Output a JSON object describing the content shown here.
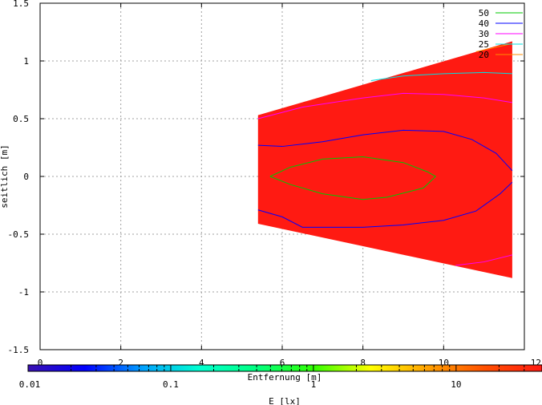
{
  "chart_data": {
    "type": "contour",
    "title": "",
    "xlabel": "Entfernung [m]",
    "ylabel": "seitlich [m]",
    "xlim": [
      0,
      12
    ],
    "ylim": [
      -1.5,
      1.5
    ],
    "x_ticks": [
      0,
      2,
      4,
      6,
      8,
      10,
      12
    ],
    "x_tick_labels": [
      "0",
      "2",
      "4",
      "6",
      "8",
      "10",
      "12"
    ],
    "y_ticks": [
      1.5,
      1,
      0.5,
      0,
      -0.5,
      -1,
      -1.5
    ],
    "y_tick_labels": [
      "1.5",
      "1",
      "0.5",
      "0",
      "-0.5",
      "-1",
      "-1.5"
    ],
    "grid": true,
    "legend_position": "top-right",
    "fill_color": "#ff1a12",
    "region": [
      [
        5.4,
        0.53
      ],
      [
        11.7,
        1.17
      ],
      [
        11.7,
        -0.88
      ],
      [
        5.4,
        -0.41
      ]
    ],
    "contours": [
      {
        "name": "50",
        "color": "#00c800",
        "points": [
          [
            5.7,
            0.0
          ],
          [
            6.2,
            0.08
          ],
          [
            7.0,
            0.15
          ],
          [
            8.0,
            0.17
          ],
          [
            9.0,
            0.12
          ],
          [
            9.6,
            0.04
          ],
          [
            9.8,
            0.0
          ],
          [
            9.5,
            -0.1
          ],
          [
            8.6,
            -0.18
          ],
          [
            8.0,
            -0.2
          ],
          [
            7.0,
            -0.15
          ],
          [
            6.2,
            -0.07
          ],
          [
            5.7,
            0.0
          ]
        ]
      },
      {
        "name": "40",
        "color": "#0000ff",
        "points": [
          [
            5.4,
            0.27
          ],
          [
            6.0,
            0.26
          ],
          [
            7.0,
            0.3
          ],
          [
            8.0,
            0.36
          ],
          [
            9.0,
            0.4
          ],
          [
            10.0,
            0.39
          ],
          [
            10.7,
            0.32
          ],
          [
            11.3,
            0.2
          ],
          [
            11.7,
            0.05
          ]
        ]
      },
      {
        "name": "40",
        "color": "#0000ff",
        "points": [
          [
            5.4,
            -0.29
          ],
          [
            6.0,
            -0.35
          ],
          [
            6.5,
            -0.44
          ],
          [
            8.0,
            -0.44
          ],
          [
            9.0,
            -0.42
          ],
          [
            10.0,
            -0.38
          ],
          [
            10.8,
            -0.3
          ],
          [
            11.4,
            -0.15
          ],
          [
            11.7,
            -0.05
          ]
        ]
      },
      {
        "name": "30",
        "color": "#ff00ff",
        "points": [
          [
            5.4,
            0.5
          ],
          [
            6.5,
            0.6
          ],
          [
            8.0,
            0.68
          ],
          [
            9.0,
            0.72
          ],
          [
            10.0,
            0.71
          ],
          [
            11.0,
            0.68
          ],
          [
            11.7,
            0.64
          ]
        ]
      },
      {
        "name": "30",
        "color": "#ff00ff",
        "points": [
          [
            10.3,
            -0.77
          ],
          [
            11.0,
            -0.74
          ],
          [
            11.7,
            -0.68
          ]
        ]
      },
      {
        "name": "25",
        "color": "#00e0e0",
        "points": [
          [
            8.2,
            0.83
          ],
          [
            9.0,
            0.87
          ],
          [
            10.0,
            0.89
          ],
          [
            11.0,
            0.9
          ],
          [
            11.7,
            0.89
          ]
        ]
      },
      {
        "name": "20",
        "color": "#ff8c00",
        "points": [
          [
            10.8,
            1.08
          ],
          [
            11.3,
            1.12
          ],
          [
            11.7,
            1.15
          ]
        ]
      }
    ],
    "legend": [
      {
        "label": "50",
        "color": "#00c800"
      },
      {
        "label": "40",
        "color": "#0000ff"
      },
      {
        "label": "30",
        "color": "#ff00ff"
      },
      {
        "label": "25",
        "color": "#00e0e0"
      },
      {
        "label": "20",
        "color": "#ff8c00"
      }
    ],
    "colorbar": {
      "label": "E [lx]",
      "scale": "log",
      "range": [
        0.01,
        40
      ],
      "tick_labels": [
        "0.01",
        "0.1",
        "1",
        "10"
      ],
      "tick_values": [
        0.01,
        0.1,
        1,
        10
      ],
      "colors": [
        "#3a10b0",
        "#0000ff",
        "#00a0ff",
        "#00ffd0",
        "#00ff80",
        "#30ff00",
        "#ffff00",
        "#ffa000",
        "#ff5000",
        "#ff1a12"
      ]
    }
  }
}
